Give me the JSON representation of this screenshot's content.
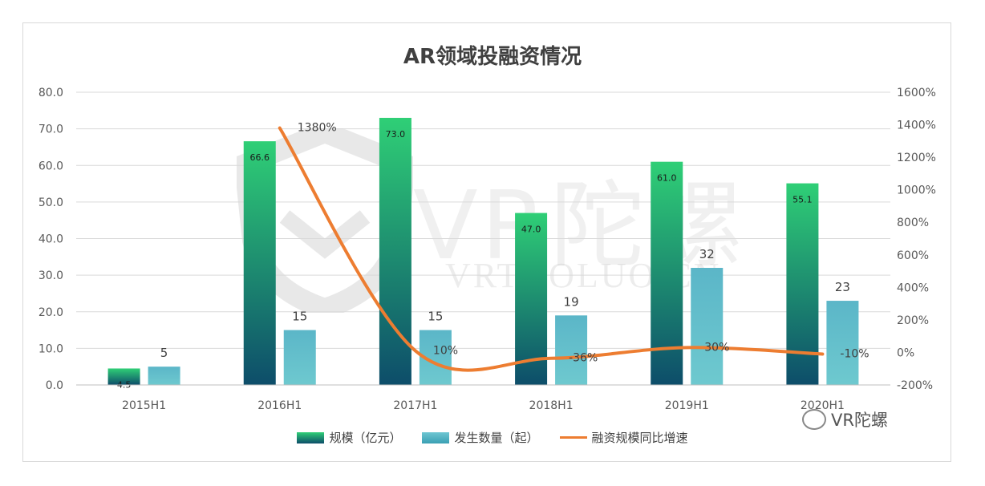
{
  "chart_data": {
    "type": "bar",
    "title": "AR领域投融资情况",
    "categories": [
      "2015H1",
      "2016H1",
      "2017H1",
      "2018H1",
      "2019H1",
      "2020H1"
    ],
    "series": [
      {
        "name": "规模（亿元）",
        "type": "bar",
        "axis": "left",
        "values": [
          4.5,
          66.6,
          73.0,
          47.0,
          61.0,
          55.1
        ],
        "labels": [
          "4.5",
          "66.6",
          "73.0",
          "47.0",
          "61.0",
          "55.1"
        ]
      },
      {
        "name": "发生数量（起）",
        "type": "bar",
        "axis": "left",
        "values": [
          5,
          15,
          15,
          19,
          32,
          23
        ],
        "labels": [
          "5",
          "15",
          "15",
          "19",
          "32",
          "23"
        ]
      },
      {
        "name": "融资规模同比增速",
        "type": "line",
        "axis": "right",
        "values": [
          null,
          1380,
          10,
          -36,
          30,
          -10
        ],
        "labels": [
          "",
          "1380%",
          "10%",
          "-36%",
          "30%",
          "-10%"
        ]
      }
    ],
    "left_axis": {
      "ylim": [
        0,
        80
      ],
      "ticks": [
        "0.0",
        "10.0",
        "20.0",
        "30.0",
        "40.0",
        "50.0",
        "60.0",
        "70.0",
        "80.0"
      ]
    },
    "right_axis": {
      "ylim": [
        -200,
        1600
      ],
      "ticks": [
        "-200%",
        "0%",
        "200%",
        "400%",
        "600%",
        "800%",
        "1000%",
        "1200%",
        "1400%",
        "1600%"
      ]
    },
    "grid": true,
    "legend_position": "bottom",
    "colors": {
      "bar1_top": "#2fcf76",
      "bar1_bottom": "#0d4d6a",
      "bar2_top": "#6ec6d2",
      "bar2_bottom": "#3aa0b4",
      "line": "#ed7d31"
    }
  },
  "watermark": {
    "brand_cn": "VR陀螺",
    "url": "VRTUOLUO.CN"
  },
  "footer_brand": "VR陀螺"
}
